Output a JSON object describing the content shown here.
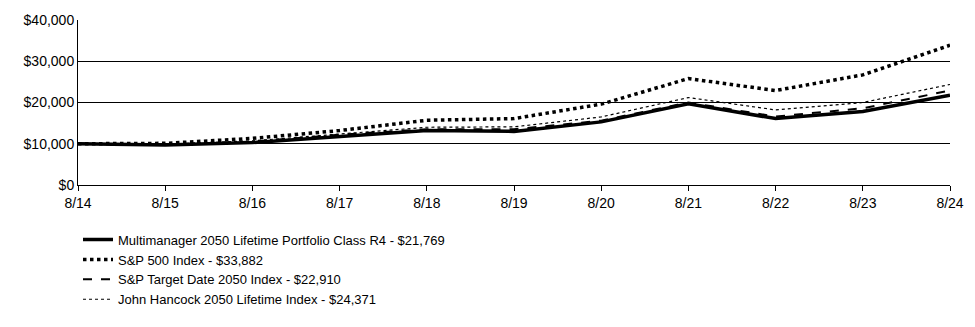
{
  "chart_data": {
    "type": "line",
    "categories": [
      "8/14",
      "8/15",
      "8/16",
      "8/17",
      "8/18",
      "8/19",
      "8/20",
      "8/21",
      "8/22",
      "8/23",
      "8/24"
    ],
    "series": [
      {
        "name": "Multimanager 2050 Lifetime Portfolio Class R4 - $21,769",
        "color": "#000000",
        "line_style": "solid",
        "values": [
          10000,
          9700,
          10300,
          11800,
          13200,
          13000,
          15300,
          19700,
          16100,
          17800,
          21769
        ]
      },
      {
        "name": "S&P 500 Index - $33,882",
        "color": "#000000",
        "line_style": "dotted",
        "values": [
          10000,
          10100,
          11300,
          13200,
          15700,
          16100,
          19600,
          25800,
          22900,
          26700,
          33882
        ]
      },
      {
        "name": "S&P Target Date 2050 Index - $22,910",
        "color": "#000000",
        "line_style": "dashed",
        "values": [
          10000,
          9800,
          10500,
          12200,
          13500,
          13500,
          15600,
          20000,
          16600,
          18600,
          22910
        ]
      },
      {
        "name": "John Hancock 2050 Lifetime Index - $24,371",
        "color": "#000000",
        "line_style": "thin-dotted",
        "values": [
          10000,
          9900,
          10700,
          12400,
          14000,
          14100,
          16500,
          21200,
          18200,
          20000,
          24371
        ]
      }
    ],
    "ylim": [
      0,
      40000
    ],
    "yticks": [
      {
        "value": 0,
        "label": "$0"
      },
      {
        "value": 10000,
        "label": "$10,000"
      },
      {
        "value": 20000,
        "label": "$20,000"
      },
      {
        "value": 30000,
        "label": "$30,000"
      },
      {
        "value": 40000,
        "label": "$40,000"
      }
    ],
    "grid": true,
    "legend": "bottom"
  }
}
